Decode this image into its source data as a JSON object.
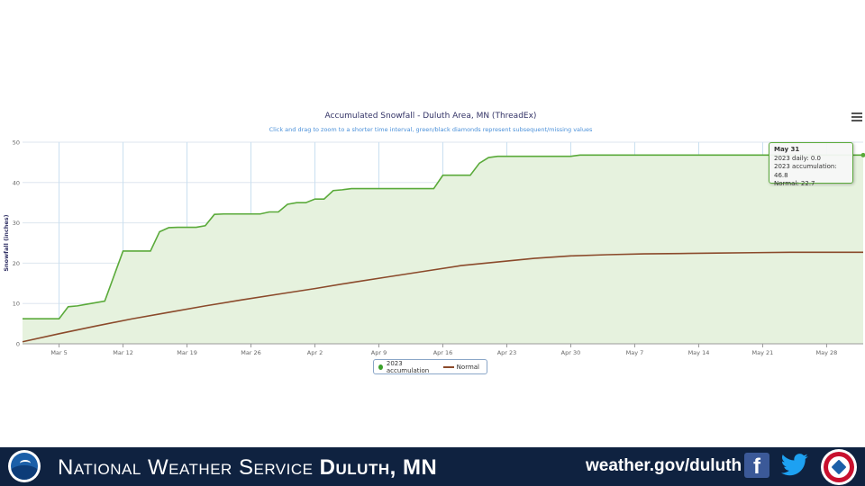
{
  "chart_data": {
    "type": "area",
    "title": "Accumulated Snowfall - Duluth Area, MN (ThreadEx)",
    "subtitle": "Click and drag to zoom to a shorter time interval, green/black diamonds represent subsequent/missing values",
    "ylabel": "Snowfall (inches)",
    "xlabel": "",
    "ylim": [
      0,
      50
    ],
    "yticks": [
      "0",
      "10",
      "20",
      "30",
      "40",
      "50"
    ],
    "xlim": [
      0,
      92
    ],
    "xticks": [
      {
        "day": 4,
        "label": "Mar 5"
      },
      {
        "day": 11,
        "label": "Mar 12"
      },
      {
        "day": 18,
        "label": "Mar 19"
      },
      {
        "day": 25,
        "label": "Mar 26"
      },
      {
        "day": 32,
        "label": "Apr 2"
      },
      {
        "day": 39,
        "label": "Apr 9"
      },
      {
        "day": 46,
        "label": "Apr 16"
      },
      {
        "day": 53,
        "label": "Apr 23"
      },
      {
        "day": 60,
        "label": "Apr 30"
      },
      {
        "day": 67,
        "label": "May 7"
      },
      {
        "day": 74,
        "label": "May 14"
      },
      {
        "day": 81,
        "label": "May 21"
      },
      {
        "day": 88,
        "label": "May 28"
      }
    ],
    "grid": true,
    "legend_position": "bottom",
    "series": [
      {
        "name": "2023 accumulation",
        "color": "#5aaa3a",
        "fill": "#e6f2de",
        "x": [
          0,
          4,
          5,
          6,
          7,
          8,
          9,
          10,
          11,
          12,
          13,
          14,
          15,
          16,
          17,
          18,
          19,
          20,
          21,
          22,
          23,
          24,
          25,
          26,
          27,
          28,
          29,
          30,
          31,
          32,
          33,
          34,
          35,
          36,
          37,
          38,
          39,
          40,
          41,
          42,
          43,
          44,
          45,
          46,
          47,
          48,
          49,
          50,
          51,
          52,
          53,
          54,
          55,
          56,
          57,
          58,
          59,
          60,
          61,
          62,
          63,
          64,
          65,
          66,
          67,
          68,
          69,
          70,
          71,
          72,
          73,
          74,
          75,
          76,
          77,
          78,
          79,
          80,
          81,
          82,
          83,
          84,
          85,
          86,
          87,
          88,
          89,
          90,
          91,
          92
        ],
        "values": [
          6.2,
          6.2,
          9.2,
          9.4,
          9.8,
          10.2,
          10.6,
          16.8,
          23.0,
          23.0,
          23.0,
          23.0,
          27.8,
          28.8,
          28.9,
          28.9,
          28.9,
          29.3,
          32.1,
          32.2,
          32.2,
          32.2,
          32.2,
          32.2,
          32.7,
          32.7,
          34.6,
          35.0,
          35.0,
          35.9,
          35.9,
          38.0,
          38.2,
          38.5,
          38.5,
          38.5,
          38.5,
          38.5,
          38.5,
          38.5,
          38.5,
          38.5,
          38.5,
          41.8,
          41.8,
          41.8,
          41.8,
          44.8,
          46.2,
          46.5,
          46.5,
          46.5,
          46.5,
          46.5,
          46.5,
          46.5,
          46.5,
          46.5,
          46.8,
          46.8,
          46.8,
          46.8,
          46.8,
          46.8,
          46.8,
          46.8,
          46.8,
          46.8,
          46.8,
          46.8,
          46.8,
          46.8,
          46.8,
          46.8,
          46.8,
          46.8,
          46.8,
          46.8,
          46.8,
          46.8,
          46.8,
          46.8,
          46.8,
          46.8,
          46.8,
          46.8,
          46.8,
          46.8,
          46.8,
          46.8
        ]
      },
      {
        "name": "Normal",
        "color": "#8b4a2b",
        "x": [
          0,
          4,
          8,
          12,
          16,
          20,
          24,
          28,
          32,
          36,
          40,
          44,
          48,
          52,
          56,
          60,
          64,
          68,
          72,
          76,
          80,
          84,
          88,
          92
        ],
        "values": [
          0.5,
          2.5,
          4.4,
          6.2,
          7.8,
          9.4,
          10.9,
          12.3,
          13.7,
          15.2,
          16.6,
          18.0,
          19.4,
          20.3,
          21.2,
          21.8,
          22.1,
          22.3,
          22.4,
          22.5,
          22.6,
          22.7,
          22.7,
          22.7
        ]
      }
    ],
    "tooltip": {
      "date": "May 31",
      "lines": [
        "2023 daily: 0.0",
        "2023 accumulation: 46.8",
        "Normal: 22.7"
      ]
    }
  },
  "menu_icon": "hamburger-menu-icon",
  "footer": {
    "background": "#0f2240",
    "title_regular": "National Weather Service",
    "title_bold": "Duluth, MN",
    "url": "weather.gov/duluth",
    "facebook_glyph": "f",
    "icons": [
      "noaa-logo",
      "facebook-icon",
      "twitter-icon",
      "nws-logo"
    ]
  }
}
